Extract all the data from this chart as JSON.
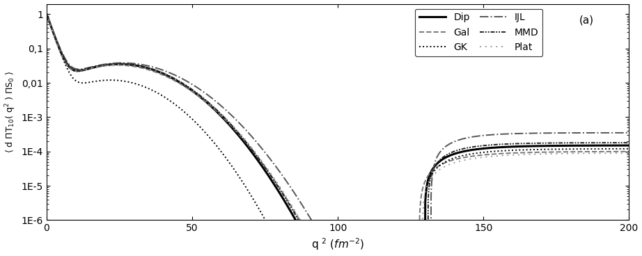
{
  "xlim": [
    0,
    200
  ],
  "ylim": [
    1e-06,
    2.0
  ],
  "xticks": [
    0,
    50,
    100,
    150,
    200
  ],
  "ytick_values": [
    1e-06,
    1e-05,
    0.0001,
    0.001,
    0.01,
    0.1,
    1
  ],
  "ytick_labels": [
    "1E-6",
    "1E-5",
    "1E-4",
    "1E-3",
    "0,01",
    "0,1",
    "1"
  ],
  "xlabel": "q $^2$ $( fm^{-2} )$",
  "ylabel": "< d $\\Pi$T$_{10}$( q$^2$ ) $\\Pi$S$_0$ >",
  "label_a": "(a)",
  "background_color": "#ffffff",
  "curves": {
    "Dip": {
      "color": "#000000",
      "lw": 2.2,
      "ls": "solid"
    },
    "Gal": {
      "color": "#777777",
      "lw": 1.4,
      "ls": "dashed"
    },
    "GK": {
      "color": "#000000",
      "lw": 1.4,
      "ls": "dotted"
    },
    "IJL": {
      "color": "#555555",
      "lw": 1.4,
      "ls": "dashdot"
    },
    "MMD": {
      "color": "#222222",
      "lw": 1.4,
      "ls": "dashdotdotted"
    },
    "Plat": {
      "color": "#999999",
      "lw": 1.4,
      "ls": "dotted"
    }
  },
  "legend_order": [
    "Dip",
    "Gal",
    "GK",
    "IJL",
    "MMD",
    "Plat"
  ]
}
